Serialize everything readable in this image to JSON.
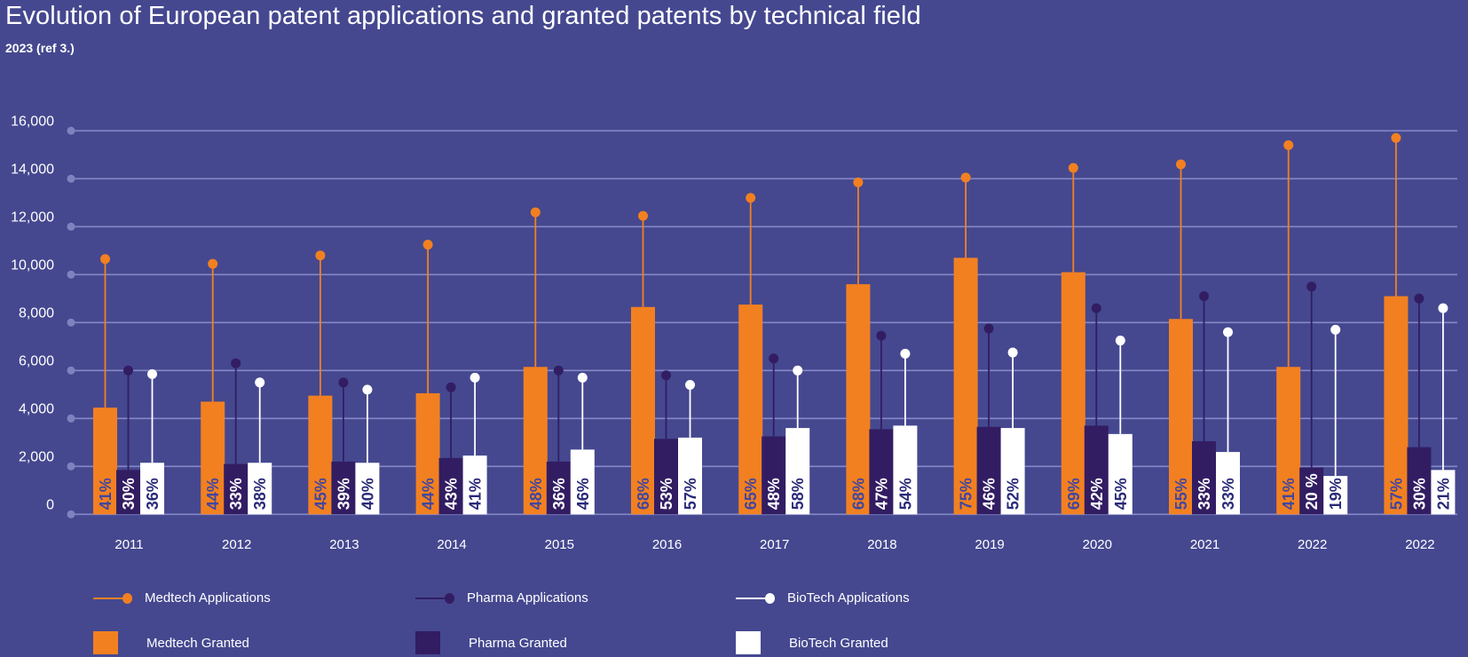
{
  "header": {
    "title": "Evolution of European patent applications and granted patents by technical field",
    "subtitle": "2023 (ref 3.)"
  },
  "colors": {
    "background": "#45488f",
    "medtech": "#f28021",
    "pharma": "#321d63",
    "biotech": "#ffffff",
    "grid": "#8587c6",
    "medtech_label_text": "#4146a0",
    "biotech_label_text": "#2a2a7a"
  },
  "legend": {
    "medtech_applications": "Medtech Applications",
    "pharma_applications": "Pharma Applications",
    "biotech_applications": "BioTech Applications",
    "medtech_granted": "Medtech Granted",
    "pharma_granted": "Pharma Granted",
    "biotech_granted": "BioTech Granted"
  },
  "chart_data": {
    "type": "bar",
    "title": "Evolution of European patent applications and granted patents by technical field",
    "subtitle": "2023 (ref 3.)",
    "xlabel": "",
    "ylabel": "",
    "ylim": [
      0,
      16000
    ],
    "yticks": [
      "0",
      "2,000",
      "4,000",
      "6,000",
      "8,000",
      "10,000",
      "12,000",
      "14,000",
      "16,000"
    ],
    "ytick_values": [
      0,
      2000,
      4000,
      6000,
      8000,
      10000,
      12000,
      14000,
      16000
    ],
    "grid": true,
    "legend_position": "bottom",
    "categories": [
      "2011",
      "2012",
      "2013",
      "2014",
      "2015",
      "2016",
      "2017",
      "2018",
      "2019",
      "2020",
      "2021",
      "2022",
      "2022"
    ],
    "series": [
      {
        "name": "Medtech Applications",
        "kind": "lollipop",
        "color": "#f28021",
        "values": [
          10650,
          10450,
          10800,
          11250,
          12600,
          12450,
          13200,
          13850,
          14050,
          14450,
          14600,
          15400,
          15700
        ]
      },
      {
        "name": "Pharma Applications",
        "kind": "lollipop",
        "color": "#321d63",
        "values": [
          6000,
          6300,
          5500,
          5300,
          6000,
          5800,
          6500,
          7450,
          7750,
          8600,
          9100,
          9500,
          9000
        ]
      },
      {
        "name": "BioTech Applications",
        "kind": "lollipop",
        "color": "#ffffff",
        "values": [
          5850,
          5500,
          5200,
          5700,
          5700,
          5400,
          6000,
          6700,
          6750,
          7250,
          7600,
          7700,
          8600
        ]
      },
      {
        "name": "Medtech Granted",
        "kind": "bar",
        "color": "#f28021",
        "values": [
          4450,
          4700,
          4950,
          5050,
          6150,
          8650,
          8750,
          9600,
          10700,
          10100,
          8150,
          6150,
          9100
        ],
        "labels": [
          "41%",
          "44%",
          "45%",
          "44%",
          "48%",
          "68%",
          "65%",
          "68%",
          "75%",
          "69%",
          "55%",
          "41%",
          "57%"
        ]
      },
      {
        "name": "Pharma Granted",
        "kind": "bar",
        "color": "#321d63",
        "values": [
          1850,
          2100,
          2200,
          2350,
          2200,
          3150,
          3250,
          3550,
          3650,
          3700,
          3050,
          1950,
          2800
        ],
        "labels": [
          "30%",
          "33%",
          "39%",
          "43%",
          "36%",
          "53%",
          "48%",
          "47%",
          "46%",
          "42%",
          "33%",
          "20 %",
          "30%"
        ]
      },
      {
        "name": "BioTech Granted",
        "kind": "bar",
        "color": "#ffffff",
        "values": [
          2150,
          2150,
          2150,
          2450,
          2700,
          3200,
          3600,
          3700,
          3600,
          3350,
          2600,
          1600,
          1850
        ],
        "labels": [
          "36%",
          "38%",
          "40%",
          "41%",
          "46%",
          "57%",
          "58%",
          "54%",
          "52%",
          "45%",
          "33%",
          "19%",
          "21%"
        ]
      }
    ]
  }
}
